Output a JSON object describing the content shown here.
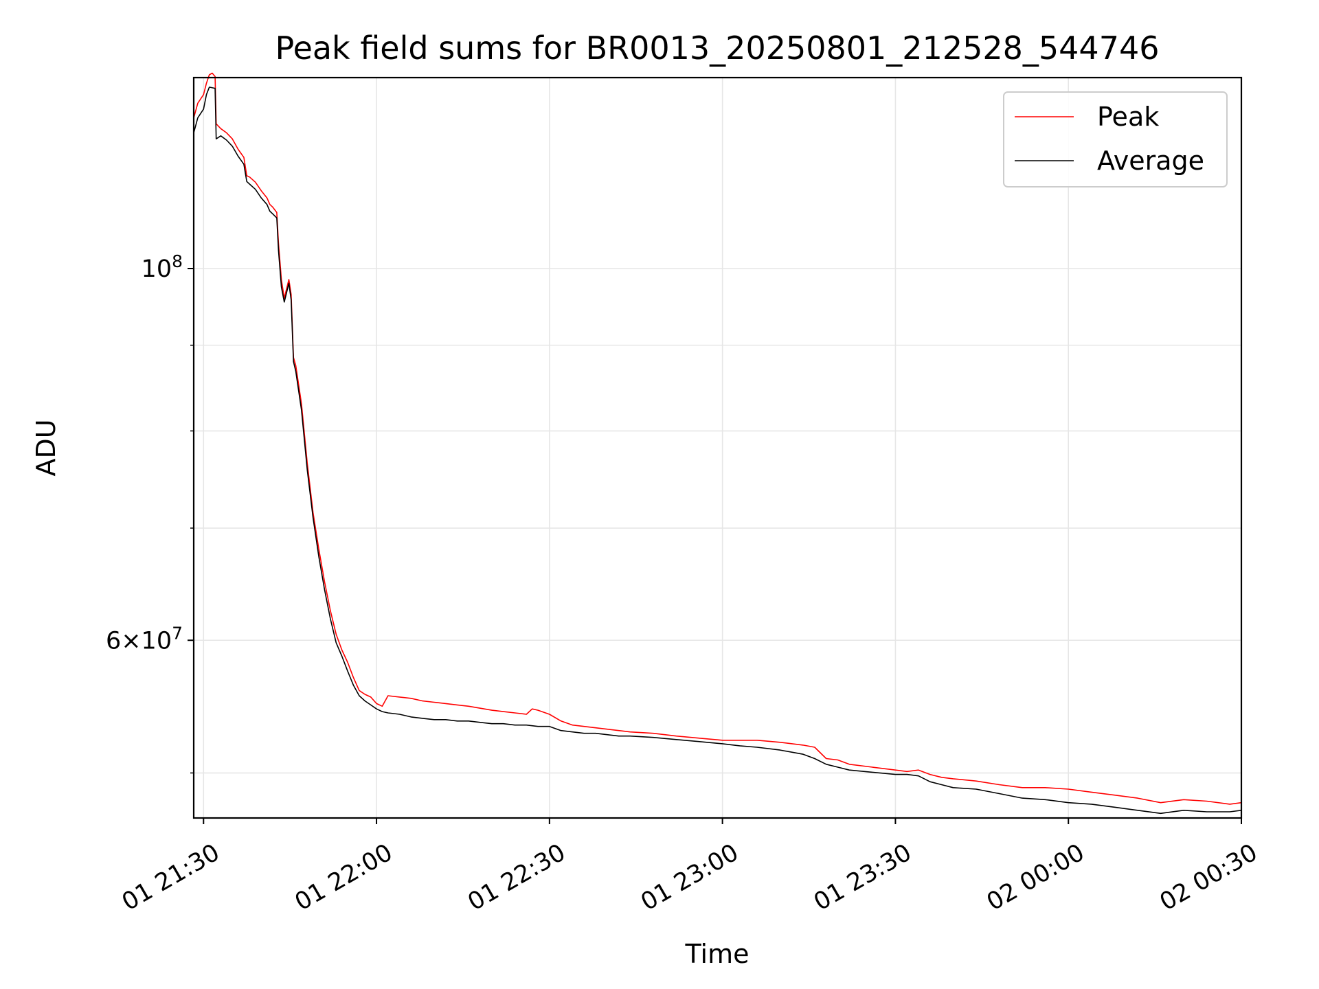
{
  "chart_data": {
    "type": "line",
    "title": "Peak field sums for BR0013_20250801_212528_544746",
    "xlabel": "Time",
    "ylabel": "ADU",
    "x_ticks": [
      "01 21:30",
      "01 22:00",
      "01 22:30",
      "01 23:00",
      "01 23:30",
      "02 00:00",
      "02 00:30"
    ],
    "x_tick_minutes": [
      0,
      30,
      60,
      90,
      120,
      150,
      180
    ],
    "xlim_minutes": [
      -1.7,
      180
    ],
    "y_scale": "log",
    "ylim": [
      47000000,
      130000000
    ],
    "y_major_ticks": [
      {
        "value": 100000000,
        "mantissa": "",
        "base": "10",
        "exp": "8"
      },
      {
        "value": 60000000,
        "mantissa": "6",
        "base": "×10",
        "exp": "7"
      }
    ],
    "y_minor_ticks": [
      50000000,
      70000000,
      80000000,
      90000000
    ],
    "grid": true,
    "legend_position": "top-right",
    "series": [
      {
        "name": "Peak",
        "color": "#ff0000",
        "points": [
          [
            -1.7,
            123000000
          ],
          [
            -1,
            125500000
          ],
          [
            0,
            127000000
          ],
          [
            0.5,
            129000000
          ],
          [
            1,
            130500000
          ],
          [
            1.5,
            130800000
          ],
          [
            2,
            130200000
          ],
          [
            2.2,
            122000000
          ],
          [
            3,
            121200000
          ],
          [
            4,
            120500000
          ],
          [
            5,
            119500000
          ],
          [
            6,
            117800000
          ],
          [
            7,
            116500000
          ],
          [
            7.5,
            113600000
          ],
          [
            8,
            113400000
          ],
          [
            9,
            112600000
          ],
          [
            10,
            111300000
          ],
          [
            11,
            110200000
          ],
          [
            11.5,
            109200000
          ],
          [
            12,
            108800000
          ],
          [
            12.7,
            108000000
          ],
          [
            13,
            103500000
          ],
          [
            13.5,
            98500000
          ],
          [
            14,
            96000000
          ],
          [
            14.8,
            98500000
          ],
          [
            15.2,
            96500000
          ],
          [
            15.6,
            88500000
          ],
          [
            16,
            87500000
          ],
          [
            17,
            83000000
          ],
          [
            18,
            76500000
          ],
          [
            19,
            71500000
          ],
          [
            20,
            68000000
          ],
          [
            21,
            65000000
          ],
          [
            22,
            62500000
          ],
          [
            23,
            60500000
          ],
          [
            24,
            59200000
          ],
          [
            25,
            58200000
          ],
          [
            26,
            57000000
          ],
          [
            27,
            56000000
          ],
          [
            28,
            55700000
          ],
          [
            29,
            55500000
          ],
          [
            30,
            55000000
          ],
          [
            31,
            54800000
          ],
          [
            32,
            55600000
          ],
          [
            34,
            55500000
          ],
          [
            36,
            55400000
          ],
          [
            38,
            55200000
          ],
          [
            40,
            55100000
          ],
          [
            42,
            55000000
          ],
          [
            44,
            54900000
          ],
          [
            46,
            54800000
          ],
          [
            48,
            54650000
          ],
          [
            50,
            54500000
          ],
          [
            52,
            54400000
          ],
          [
            54,
            54300000
          ],
          [
            56,
            54200000
          ],
          [
            57,
            54600000
          ],
          [
            58,
            54500000
          ],
          [
            60,
            54200000
          ],
          [
            62,
            53700000
          ],
          [
            64,
            53400000
          ],
          [
            66,
            53300000
          ],
          [
            68,
            53200000
          ],
          [
            70,
            53100000
          ],
          [
            72,
            53000000
          ],
          [
            74,
            52900000
          ],
          [
            78,
            52800000
          ],
          [
            82,
            52600000
          ],
          [
            86,
            52450000
          ],
          [
            90,
            52300000
          ],
          [
            93,
            52300000
          ],
          [
            96,
            52300000
          ],
          [
            100,
            52150000
          ],
          [
            104,
            51950000
          ],
          [
            106,
            51800000
          ],
          [
            108,
            51000000
          ],
          [
            110,
            50900000
          ],
          [
            112,
            50600000
          ],
          [
            116,
            50400000
          ],
          [
            120,
            50200000
          ],
          [
            122,
            50100000
          ],
          [
            124,
            50200000
          ],
          [
            126,
            49900000
          ],
          [
            128,
            49700000
          ],
          [
            130,
            49600000
          ],
          [
            134,
            49450000
          ],
          [
            138,
            49200000
          ],
          [
            142,
            49000000
          ],
          [
            146,
            49000000
          ],
          [
            150,
            48900000
          ],
          [
            154,
            48700000
          ],
          [
            158,
            48500000
          ],
          [
            162,
            48300000
          ],
          [
            166,
            48000000
          ],
          [
            170,
            48200000
          ],
          [
            174,
            48100000
          ],
          [
            178,
            47900000
          ],
          [
            180,
            48000000
          ]
        ]
      },
      {
        "name": "Average",
        "color": "#000000",
        "points": [
          [
            -1.7,
            120500000
          ],
          [
            -1,
            123000000
          ],
          [
            0,
            124500000
          ],
          [
            0.5,
            127000000
          ],
          [
            1,
            128300000
          ],
          [
            2,
            128100000
          ],
          [
            2.2,
            119500000
          ],
          [
            3,
            120000000
          ],
          [
            4,
            119300000
          ],
          [
            5,
            118300000
          ],
          [
            6,
            116700000
          ],
          [
            7,
            115400000
          ],
          [
            7.5,
            112700000
          ],
          [
            8,
            112300000
          ],
          [
            9,
            111500000
          ],
          [
            10,
            110200000
          ],
          [
            11,
            109200000
          ],
          [
            11.5,
            108200000
          ],
          [
            12,
            107800000
          ],
          [
            12.7,
            107200000
          ],
          [
            13,
            102500000
          ],
          [
            13.5,
            97500000
          ],
          [
            14,
            95500000
          ],
          [
            14.8,
            98000000
          ],
          [
            15.2,
            95800000
          ],
          [
            15.6,
            88000000
          ],
          [
            16,
            86800000
          ],
          [
            17,
            82300000
          ],
          [
            18,
            75800000
          ],
          [
            19,
            71000000
          ],
          [
            20,
            67300000
          ],
          [
            21,
            64300000
          ],
          [
            22,
            61800000
          ],
          [
            23,
            59800000
          ],
          [
            24,
            58700000
          ],
          [
            25,
            57500000
          ],
          [
            26,
            56400000
          ],
          [
            27,
            55600000
          ],
          [
            28,
            55200000
          ],
          [
            29,
            54900000
          ],
          [
            30,
            54600000
          ],
          [
            31,
            54400000
          ],
          [
            32,
            54300000
          ],
          [
            34,
            54200000
          ],
          [
            36,
            54000000
          ],
          [
            38,
            53900000
          ],
          [
            40,
            53800000
          ],
          [
            42,
            53800000
          ],
          [
            44,
            53700000
          ],
          [
            46,
            53700000
          ],
          [
            48,
            53600000
          ],
          [
            50,
            53500000
          ],
          [
            52,
            53500000
          ],
          [
            54,
            53400000
          ],
          [
            56,
            53400000
          ],
          [
            58,
            53300000
          ],
          [
            60,
            53300000
          ],
          [
            62,
            53000000
          ],
          [
            64,
            52900000
          ],
          [
            66,
            52800000
          ],
          [
            68,
            52800000
          ],
          [
            70,
            52700000
          ],
          [
            72,
            52600000
          ],
          [
            74,
            52600000
          ],
          [
            78,
            52500000
          ],
          [
            82,
            52350000
          ],
          [
            86,
            52200000
          ],
          [
            90,
            52050000
          ],
          [
            93,
            51900000
          ],
          [
            96,
            51800000
          ],
          [
            100,
            51600000
          ],
          [
            104,
            51300000
          ],
          [
            106,
            51000000
          ],
          [
            108,
            50600000
          ],
          [
            110,
            50400000
          ],
          [
            112,
            50200000
          ],
          [
            116,
            50050000
          ],
          [
            120,
            49900000
          ],
          [
            122,
            49900000
          ],
          [
            124,
            49800000
          ],
          [
            126,
            49400000
          ],
          [
            128,
            49200000
          ],
          [
            130,
            49000000
          ],
          [
            134,
            48900000
          ],
          [
            138,
            48600000
          ],
          [
            142,
            48300000
          ],
          [
            146,
            48200000
          ],
          [
            150,
            48000000
          ],
          [
            154,
            47900000
          ],
          [
            158,
            47700000
          ],
          [
            162,
            47500000
          ],
          [
            166,
            47300000
          ],
          [
            170,
            47500000
          ],
          [
            174,
            47400000
          ],
          [
            178,
            47400000
          ],
          [
            180,
            47500000
          ]
        ]
      }
    ]
  }
}
